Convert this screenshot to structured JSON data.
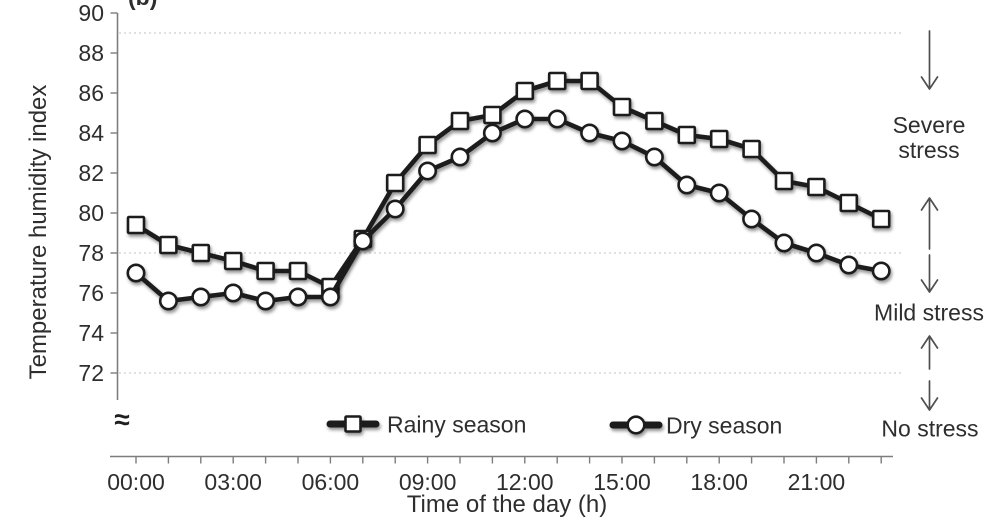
{
  "figure": {
    "panel_label": "(b)",
    "axis_break_symbol": "≈"
  },
  "chart_data": {
    "type": "line",
    "title": "",
    "xlabel": "Time of the day (h)",
    "ylabel": "Temperature humidity index",
    "x_hours": [
      0,
      1,
      2,
      3,
      4,
      5,
      6,
      7,
      8,
      9,
      10,
      11,
      12,
      13,
      14,
      15,
      16,
      17,
      18,
      19,
      20,
      21,
      22,
      23
    ],
    "x_tick_hours": [
      0,
      3,
      6,
      9,
      12,
      15,
      18,
      21
    ],
    "x_tick_labels": [
      "00:00",
      "03:00",
      "06:00",
      "09:00",
      "12:00",
      "15:00",
      "18:00",
      "21:00"
    ],
    "y_ticks": [
      90,
      88,
      86,
      84,
      82,
      80,
      78,
      76,
      74,
      72
    ],
    "ylim": [
      72,
      90
    ],
    "axis_break": true,
    "grid_on": false,
    "grid_reference_lines": [
      89,
      78,
      72
    ],
    "legend_position": "bottom-inside",
    "series": [
      {
        "name": "Rainy season",
        "marker": "square",
        "color": "#1b1b1b",
        "values": [
          79.4,
          78.4,
          78.0,
          77.6,
          77.1,
          77.1,
          76.3,
          78.7,
          81.5,
          83.4,
          84.6,
          84.9,
          86.1,
          86.6,
          86.6,
          85.3,
          84.6,
          83.9,
          83.7,
          83.2,
          81.6,
          81.3,
          80.5,
          79.7
        ]
      },
      {
        "name": "Dry season",
        "marker": "circle",
        "color": "#1b1b1b",
        "values": [
          77.0,
          75.6,
          75.8,
          76.0,
          75.6,
          75.8,
          75.8,
          78.6,
          80.2,
          82.1,
          82.8,
          84.0,
          84.7,
          84.7,
          84.0,
          83.6,
          82.8,
          81.4,
          81.0,
          79.7,
          78.5,
          78.0,
          77.4,
          77.1
        ]
      }
    ],
    "annotations": {
      "severe": "Severe stress",
      "mild": "Mild stress",
      "none": "No stress"
    }
  }
}
